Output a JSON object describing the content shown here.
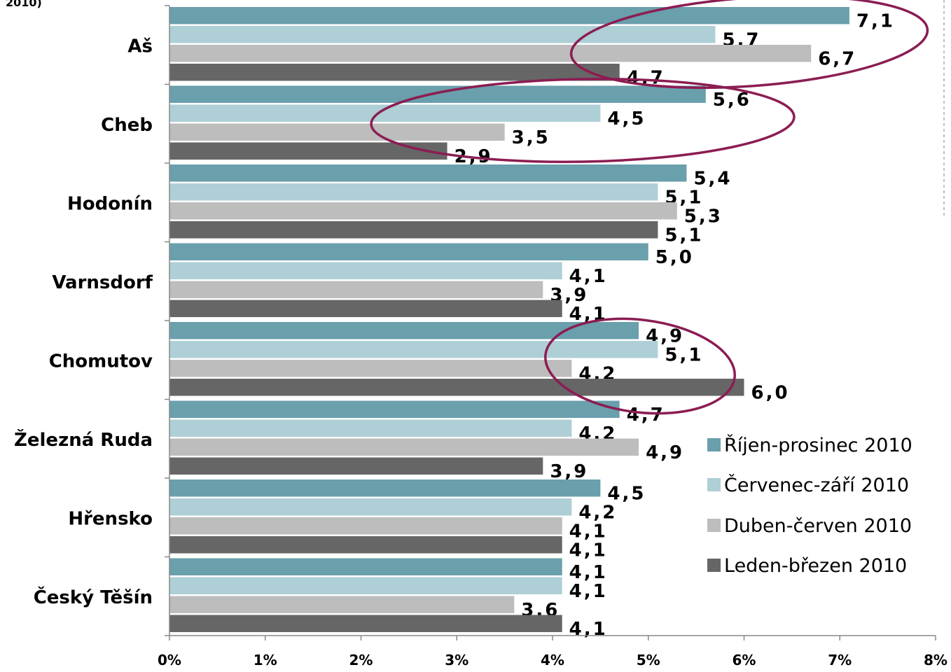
{
  "top_fragment": "2010)",
  "colors": {
    "s1": "#6a9fac",
    "s2": "#aecfd6",
    "s3": "#bdbdbd",
    "s4": "#666666",
    "ellipse": "#8b1d52",
    "axis": "#888888"
  },
  "chart_data": {
    "type": "bar",
    "orientation": "horizontal",
    "categories": [
      "Aš",
      "Cheb",
      "Hodonín",
      "Varnsdorf",
      "Chomutov",
      "Železná Ruda",
      "Hřensko",
      "Český Těšín"
    ],
    "series": [
      {
        "name": "Říjen-prosinec 2010",
        "values": [
          7.1,
          5.6,
          5.4,
          5.0,
          4.9,
          4.7,
          4.5,
          4.1
        ]
      },
      {
        "name": "Červenec-září 2010",
        "values": [
          5.7,
          4.5,
          5.1,
          4.1,
          5.1,
          4.2,
          4.2,
          4.1
        ]
      },
      {
        "name": "Duben-červen 2010",
        "values": [
          6.7,
          3.5,
          5.3,
          3.9,
          4.2,
          4.9,
          4.1,
          3.6
        ]
      },
      {
        "name": "Leden-březen 2010",
        "values": [
          4.7,
          2.9,
          5.1,
          4.1,
          6.0,
          3.9,
          4.1,
          4.1
        ]
      }
    ],
    "value_labels": [
      [
        "7,1",
        "5,6",
        "5,4",
        "5,0",
        "4,9",
        "4,7",
        "4,5",
        "4,1"
      ],
      [
        "5,7",
        "4,5",
        "5,1",
        "4,1",
        "5,1",
        "4,2",
        "4,2",
        "4,1"
      ],
      [
        "6,7",
        "3,5",
        "5,3",
        "3,9",
        "4,2",
        "4,9",
        "4,1",
        "3,6"
      ],
      [
        "4,7",
        "2,9",
        "5,1",
        "4,1",
        "6,0",
        "3,9",
        "4,1",
        "4,1"
      ]
    ],
    "xticks": [
      "0%",
      "1%",
      "2%",
      "3%",
      "4%",
      "5%",
      "6%",
      "7%",
      "8%"
    ],
    "xlim": [
      0,
      8
    ],
    "unit": "%",
    "grid": false,
    "legend_position": "right",
    "highlighted_categories": [
      "Aš",
      "Cheb",
      "Chomutov"
    ]
  }
}
